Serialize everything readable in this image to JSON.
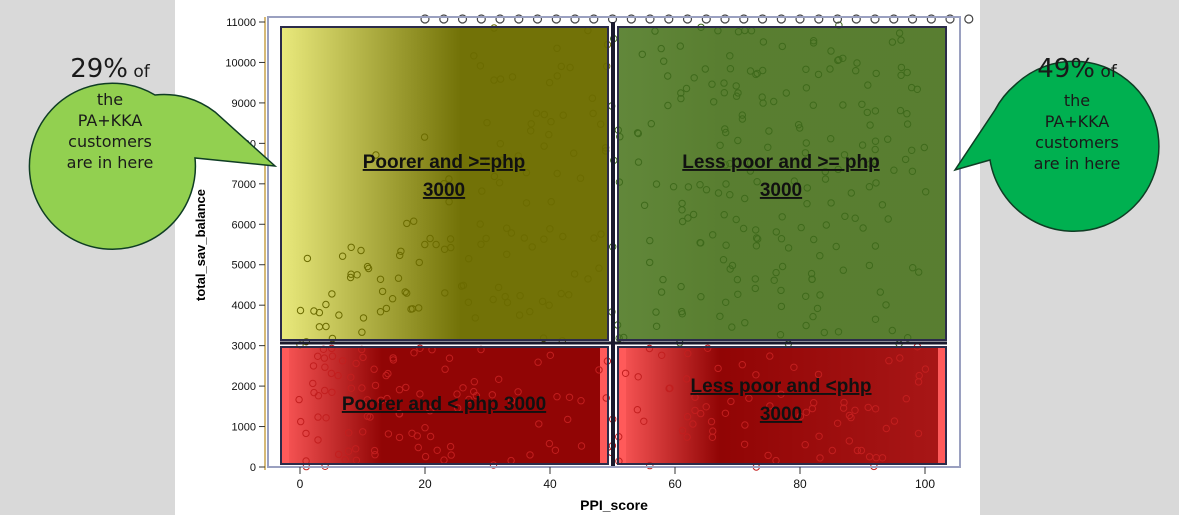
{
  "chart_data": {
    "type": "scatter",
    "xlabel": "PPI_score",
    "ylabel": "total_sav_balance",
    "xlim": [
      -5,
      105
    ],
    "ylim": [
      0,
      11000
    ],
    "x_ticks": [
      0,
      20,
      40,
      60,
      80,
      100
    ],
    "y_ticks": [
      0,
      1000,
      2000,
      3000,
      4000,
      5000,
      6000,
      7000,
      8000,
      9000,
      10000,
      11000
    ],
    "x_threshold": 50,
    "y_threshold": 3000,
    "marker": "open-circle",
    "quadrants": [
      {
        "id": "poorer-high",
        "label": "Poorer and  >=php 3000",
        "x_range": [
          0,
          50
        ],
        "y_range": [
          3000,
          11000
        ],
        "color": "#f7f78a",
        "dense_color": "#6b6b00"
      },
      {
        "id": "less-poor-high",
        "label": "Less poor and  >= php 3000",
        "x_range": [
          50,
          100
        ],
        "y_range": [
          3000,
          11000
        ],
        "color": "#a9d48a",
        "dense_color": "#557a2c"
      },
      {
        "id": "poorer-low",
        "label": "Poorer and  < php 3000",
        "x_range": [
          0,
          50
        ],
        "y_range": [
          0,
          3000
        ],
        "color": "#ff5a5a",
        "dense_color": "#8b0000"
      },
      {
        "id": "less-poor-low",
        "label": "Less poor and  <php 3000",
        "x_range": [
          50,
          100
        ],
        "y_range": [
          0,
          3000
        ],
        "color": "#ff5a5a",
        "dense_color": "#8b0000"
      }
    ]
  },
  "callouts": {
    "left": {
      "percent": "29%",
      "suffix": " of",
      "lines": [
        "the",
        "PA+KKA",
        "customers",
        "are in here"
      ],
      "color": "#92d050"
    },
    "right": {
      "percent": "49%",
      "suffix": " of",
      "lines": [
        "the",
        "PA+KKA",
        "customers",
        "are in here"
      ],
      "color": "#00b050"
    }
  }
}
